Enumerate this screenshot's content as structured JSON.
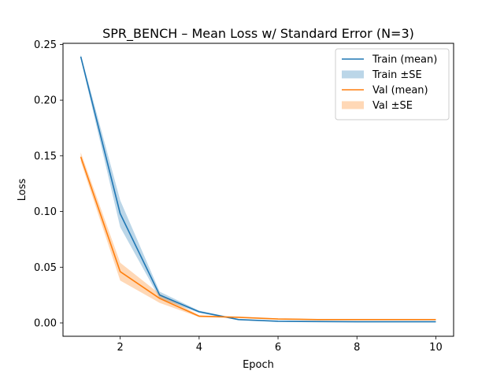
{
  "chart_data": {
    "type": "line",
    "title": "SPR_BENCH – Mean Loss w/ Standard Error (N=3)",
    "xlabel": "Epoch",
    "ylabel": "Loss",
    "x": [
      1,
      2,
      3,
      4,
      5,
      6,
      7,
      8,
      9,
      10
    ],
    "xlim": [
      0.55,
      10.45
    ],
    "ylim": [
      -0.012,
      0.251
    ],
    "xticks": [
      2,
      4,
      6,
      8,
      10
    ],
    "yticks": [
      0.0,
      0.05,
      0.1,
      0.15,
      0.2,
      0.25
    ],
    "ytick_labels": [
      "0.00",
      "0.05",
      "0.10",
      "0.15",
      "0.20",
      "0.25"
    ],
    "grid": false,
    "legend_position": "top-right",
    "series": [
      {
        "name": "Train (mean)",
        "band_name": "Train ±SE",
        "color": "#1f77b4",
        "band_color": "#1f77b4",
        "values": [
          0.239,
          0.098,
          0.025,
          0.01,
          0.003,
          0.0015,
          0.0012,
          0.001,
          0.001,
          0.001
        ],
        "se": [
          0.002,
          0.012,
          0.003,
          0.001,
          0.0005,
          0.0003,
          0.0002,
          0.0002,
          0.0002,
          0.0002
        ]
      },
      {
        "name": "Val (mean)",
        "band_name": "Val ±SE",
        "color": "#ff7f0e",
        "band_color": "#ff7f0e",
        "values": [
          0.149,
          0.046,
          0.022,
          0.006,
          0.005,
          0.0035,
          0.003,
          0.003,
          0.003,
          0.003
        ],
        "se": [
          0.004,
          0.008,
          0.004,
          0.0008,
          0.0005,
          0.0004,
          0.0004,
          0.0004,
          0.0004,
          0.0004
        ]
      }
    ]
  }
}
